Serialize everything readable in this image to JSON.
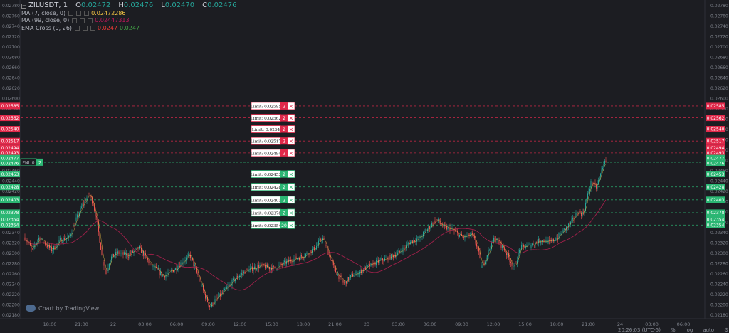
{
  "legend": {
    "symbol": "ZILUSDT, 1",
    "open_label": "O",
    "open": "0.02472",
    "high_label": "H",
    "high": "0.02476",
    "low_label": "L",
    "low": "0.02470",
    "close_label": "C",
    "close": "0.02476",
    "indicators": [
      {
        "name": "MA (7, close, 0)",
        "value": "0.02472286",
        "color": "#f5c543"
      },
      {
        "name": "MA (99, close, 0)",
        "value": "0.02447313",
        "color": "#c2185b"
      },
      {
        "name": "EMA Cross (9, 26)",
        "value": "0.0247",
        "value2": "0.0247",
        "color": "#e53935",
        "color2": "#43a047"
      }
    ]
  },
  "watermark": "Chart by TradingView",
  "footer": {
    "time": "20:26:03 (UTC-5)",
    "percent": "%",
    "log": "log",
    "auto": "auto"
  },
  "colors": {
    "background": "#1c1d22",
    "up": "#26a69a",
    "down": "#ef5350",
    "ma7": "#f5c543",
    "ma99": "#a0204a",
    "sell_order": "#e0294a",
    "buy_order": "#2bb673",
    "pnl_line": "#2bb673"
  },
  "chart_data": {
    "type": "candlestick",
    "y_ticks": [
      "0.02780",
      "0.02760",
      "0.02740",
      "0.02720",
      "0.02700",
      "0.02680",
      "0.02660",
      "0.02640",
      "0.02620",
      "0.02600",
      "0.02580",
      "0.02560",
      "0.02540",
      "0.02520",
      "0.02500",
      "0.02480",
      "0.02460",
      "0.02440",
      "0.02420",
      "0.02400",
      "0.02380",
      "0.02360",
      "0.02340",
      "0.02320",
      "0.02300",
      "0.02280",
      "0.02260",
      "0.02240",
      "0.02220",
      "0.02200",
      "0.02180"
    ],
    "ylim": [
      0.02175,
      0.02785
    ],
    "x_ticks": [
      "18:00",
      "21:00",
      "22",
      "03:00",
      "06:00",
      "09:00",
      "12:00",
      "15:00",
      "18:00",
      "21:00",
      "23",
      "03:00",
      "06:00",
      "09:00",
      "12:00",
      "15:00",
      "18:00",
      "21:00",
      "24",
      "03:00",
      "06:00"
    ],
    "price_path": [
      [
        0,
        0.0233
      ],
      [
        10,
        0.02305
      ],
      [
        20,
        0.0233
      ],
      [
        38,
        0.02305
      ],
      [
        50,
        0.02325
      ],
      [
        62,
        0.0233
      ],
      [
        72,
        0.02365
      ],
      [
        80,
        0.0239
      ],
      [
        90,
        0.02415
      ],
      [
        96,
        0.02395
      ],
      [
        102,
        0.02355
      ],
      [
        108,
        0.02295
      ],
      [
        114,
        0.0226
      ],
      [
        120,
        0.0229
      ],
      [
        130,
        0.023
      ],
      [
        145,
        0.02295
      ],
      [
        160,
        0.0231
      ],
      [
        178,
        0.02275
      ],
      [
        195,
        0.02255
      ],
      [
        212,
        0.0227
      ],
      [
        222,
        0.02285
      ],
      [
        232,
        0.02295
      ],
      [
        242,
        0.0226
      ],
      [
        252,
        0.0222
      ],
      [
        260,
        0.02195
      ],
      [
        268,
        0.0221
      ],
      [
        280,
        0.02225
      ],
      [
        295,
        0.0225
      ],
      [
        310,
        0.02265
      ],
      [
        330,
        0.02275
      ],
      [
        350,
        0.0227
      ],
      [
        372,
        0.02285
      ],
      [
        392,
        0.02295
      ],
      [
        408,
        0.0231
      ],
      [
        418,
        0.0233
      ],
      [
        426,
        0.023
      ],
      [
        436,
        0.02265
      ],
      [
        448,
        0.0224
      ],
      [
        458,
        0.02255
      ],
      [
        472,
        0.02265
      ],
      [
        490,
        0.0228
      ],
      [
        510,
        0.0229
      ],
      [
        525,
        0.023
      ],
      [
        540,
        0.0232
      ],
      [
        555,
        0.0233
      ],
      [
        568,
        0.0235
      ],
      [
        578,
        0.02365
      ],
      [
        588,
        0.0235
      ],
      [
        600,
        0.02345
      ],
      [
        615,
        0.0233
      ],
      [
        628,
        0.02335
      ],
      [
        636,
        0.0231
      ],
      [
        641,
        0.0227
      ],
      [
        650,
        0.023
      ],
      [
        660,
        0.0233
      ],
      [
        672,
        0.0231
      ],
      [
        680,
        0.0229
      ],
      [
        687,
        0.0227
      ],
      [
        696,
        0.0231
      ],
      [
        710,
        0.02315
      ],
      [
        725,
        0.02325
      ],
      [
        738,
        0.0232
      ],
      [
        748,
        0.0233
      ],
      [
        758,
        0.02345
      ],
      [
        768,
        0.0236
      ],
      [
        776,
        0.0238
      ],
      [
        784,
        0.02375
      ],
      [
        790,
        0.0241
      ],
      [
        796,
        0.0244
      ],
      [
        802,
        0.02425
      ],
      [
        808,
        0.0245
      ],
      [
        813,
        0.02475
      ],
      [
        817,
        0.02474
      ]
    ],
    "orders": [
      {
        "side": "sell",
        "price": 0.02585,
        "label": "Limit: 0.02585",
        "qty": "2"
      },
      {
        "side": "sell",
        "price": 0.02562,
        "label": "Limit: 0.02562",
        "qty": "2"
      },
      {
        "side": "sell",
        "price": 0.0254,
        "label": "Limit: 0.0254",
        "qty": "2"
      },
      {
        "side": "sell",
        "price": 0.02517,
        "label": "Limit: 0.02517",
        "qty": "2"
      },
      {
        "side": "sell",
        "price": 0.02494,
        "label": "Limit: 0.02494",
        "qty": "2"
      },
      {
        "side": "buy",
        "price": 0.02453,
        "label": "Limit: 0.02453",
        "qty": "2"
      },
      {
        "side": "buy",
        "price": 0.02428,
        "label": "Limit: 0.02428",
        "qty": "2"
      },
      {
        "side": "buy",
        "price": 0.02403,
        "label": "Limit: 0.02403",
        "qty": "2"
      },
      {
        "side": "buy",
        "price": 0.02378,
        "label": "Limit: 0.02378",
        "qty": "2"
      },
      {
        "side": "buy",
        "price": 0.02354,
        "label": "Limit: 0.02354",
        "qty": "20"
      }
    ],
    "price_badges": [
      {
        "value": 0.02585,
        "label": "0.02585",
        "side": "sell"
      },
      {
        "value": 0.02562,
        "label": "0.02562",
        "side": "sell"
      },
      {
        "value": 0.0254,
        "label": "0.02540",
        "side": "sell"
      },
      {
        "value": 0.02517,
        "label": "0.02517",
        "side": "sell"
      },
      {
        "value": 0.02504,
        "label": "0.02494",
        "side": "sell"
      },
      {
        "value": 0.02494,
        "label": "0.02493",
        "side": "sell"
      },
      {
        "value": 0.02484,
        "label": "0.02477",
        "side": "buy"
      },
      {
        "value": 0.02474,
        "label": "0.02476",
        "side": "buy"
      },
      {
        "value": 0.02453,
        "label": "0.02453",
        "side": "buy"
      },
      {
        "value": 0.02428,
        "label": "0.02428",
        "side": "buy"
      },
      {
        "value": 0.02403,
        "label": "0.02403",
        "side": "buy"
      },
      {
        "value": 0.02378,
        "label": "0.02378",
        "side": "buy"
      },
      {
        "value": 0.02365,
        "label": "0.02354",
        "side": "buy"
      },
      {
        "value": 0.02354,
        "label": "0.02354",
        "side": "buy"
      }
    ],
    "position": {
      "price": 0.02476,
      "label": "PNL 0",
      "qty": "2"
    }
  }
}
